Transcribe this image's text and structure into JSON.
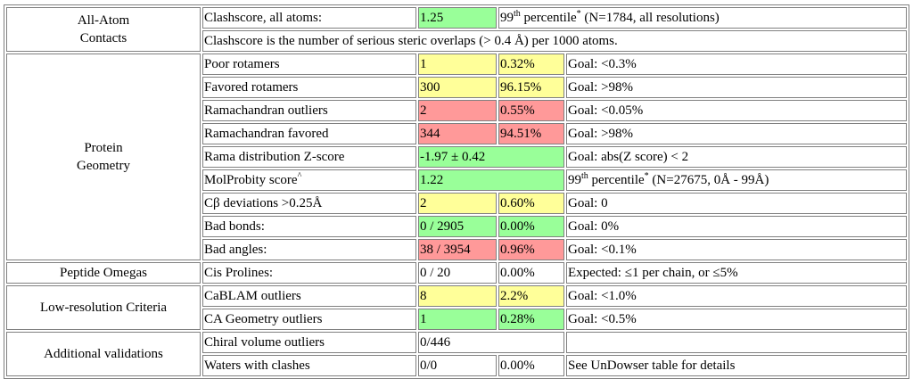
{
  "categories": {
    "all_atom": "All-Atom\nContacts",
    "protein_geometry": "Protein\nGeometry",
    "peptide_omegas": "Peptide Omegas",
    "low_resolution": "Low-resolution Criteria",
    "additional": "Additional validations"
  },
  "rows": {
    "clashscore": {
      "label": "Clashscore, all atoms:",
      "value": "1.25",
      "pct_prefix": "99",
      "pct_sup": "th",
      "pct_word": " percentile",
      "star": "*",
      "pct_tail": " (N=1784, all resolutions)",
      "color": "#99ff99"
    },
    "clash_note": "Clashscore is the number of serious steric overlaps (> 0.4 Å) per 1000 atoms.",
    "poor_rotamers": {
      "label": "Poor rotamers",
      "count": "1",
      "percent": "0.32%",
      "goal": "Goal: <0.3%",
      "color": "#ffff99"
    },
    "favored_rotamers": {
      "label": "Favored rotamers",
      "count": "300",
      "percent": "96.15%",
      "goal": "Goal: >98%",
      "color": "#ffff99"
    },
    "rama_outliers": {
      "label": "Ramachandran outliers",
      "count": "2",
      "percent": "0.55%",
      "goal": "Goal: <0.05%",
      "color": "#ff9999"
    },
    "rama_favored": {
      "label": "Ramachandran favored",
      "count": "344",
      "percent": "94.51%",
      "goal": "Goal: >98%",
      "color": "#ff9999"
    },
    "rama_z": {
      "label": "Rama distribution Z-score",
      "value": "-1.97 ± 0.42",
      "goal": "Goal: abs(Z score) < 2",
      "color": "#99ff99"
    },
    "molprobity": {
      "label": "MolProbity score",
      "label_sup": "^",
      "value": "1.22",
      "pct_prefix": "99",
      "pct_sup": "th",
      "pct_word": " percentile",
      "star": "*",
      "pct_tail": " (N=27675, 0Å - 99Å)",
      "color": "#99ff99"
    },
    "cb_dev": {
      "label": "Cβ deviations >0.25Å",
      "count": "2",
      "percent": "0.60%",
      "goal": "Goal: 0",
      "color": "#ffff99"
    },
    "bad_bonds": {
      "label": "Bad bonds:",
      "count": "0 / 2905",
      "percent": "0.00%",
      "goal": "Goal: 0%",
      "color": "#99ff99"
    },
    "bad_angles": {
      "label": "Bad angles:",
      "count": "38 / 3954",
      "percent": "0.96%",
      "goal": "Goal: <0.1%",
      "color": "#ff9999"
    },
    "cis_prolines": {
      "label": "Cis Prolines:",
      "count": "0 / 20",
      "percent": "0.00%",
      "goal": "Expected: ≤1 per chain, or ≤5%"
    },
    "cablam": {
      "label": "CaBLAM outliers",
      "count": "8",
      "percent": "2.2%",
      "goal": "Goal: <1.0%",
      "color": "#ffff99"
    },
    "ca_geom": {
      "label": "CA Geometry outliers",
      "count": "1",
      "percent": "0.28%",
      "goal": "Goal: <0.5%",
      "color": "#99ff99"
    },
    "chiral": {
      "label": "Chiral volume outliers",
      "count": "0/446",
      "goal": ""
    },
    "waters": {
      "label": "Waters with clashes",
      "count": "0/0",
      "percent": "0.00%",
      "goal": "See UnDowser table for details"
    }
  }
}
